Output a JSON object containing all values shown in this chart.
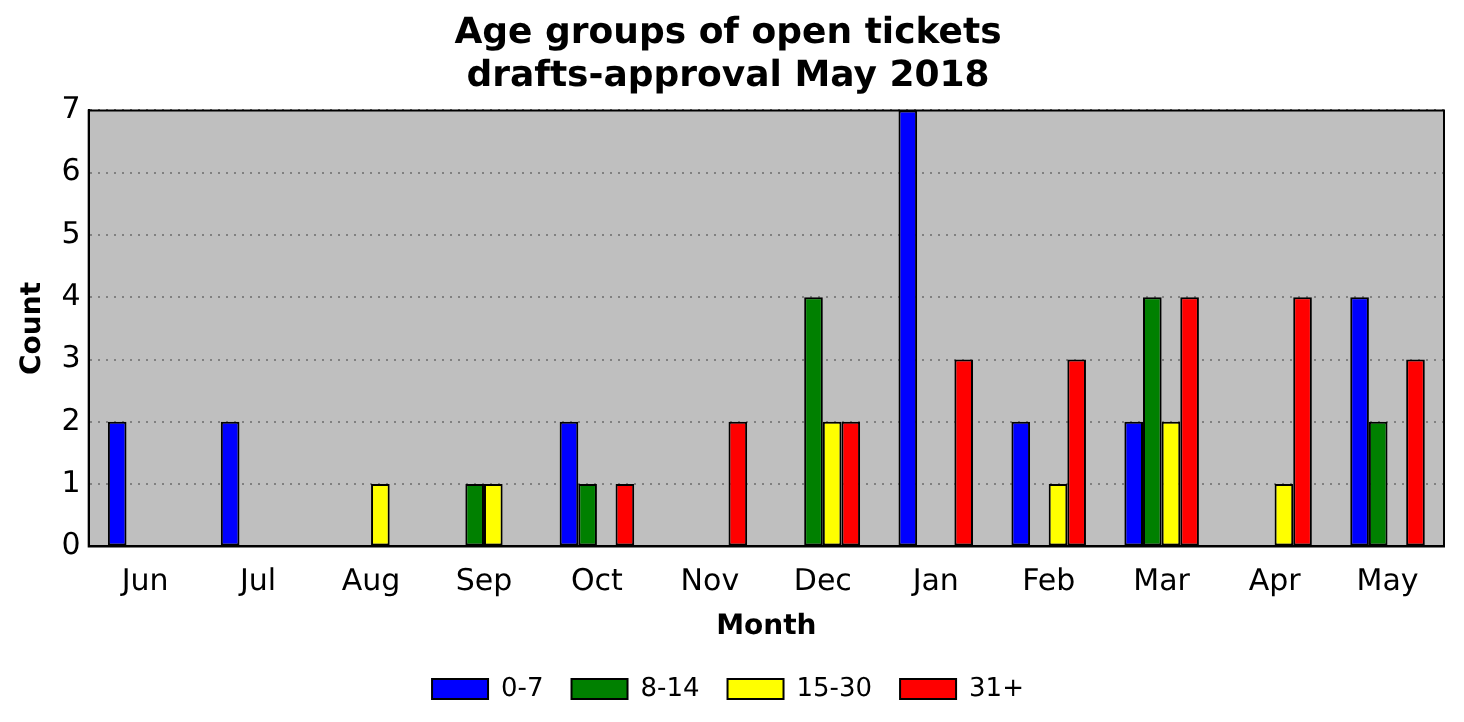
{
  "chart_data": {
    "type": "bar",
    "title": "Age groups of open tickets\ndrafts-approval May 2018",
    "xlabel": "Month",
    "ylabel": "Count",
    "categories": [
      "Jun",
      "Jul",
      "Aug",
      "Sep",
      "Oct",
      "Nov",
      "Dec",
      "Jan",
      "Feb",
      "Mar",
      "Apr",
      "May"
    ],
    "series": [
      {
        "name": "0-7",
        "color": "#0000ff",
        "values": [
          2,
          2,
          0,
          0,
          2,
          0,
          0,
          7,
          2,
          2,
          0,
          4
        ]
      },
      {
        "name": "8-14",
        "color": "#008000",
        "values": [
          0,
          0,
          0,
          1,
          1,
          0,
          4,
          0,
          0,
          4,
          0,
          2
        ]
      },
      {
        "name": "15-30",
        "color": "#ffff00",
        "values": [
          0,
          0,
          1,
          1,
          0,
          0,
          2,
          0,
          1,
          2,
          1,
          0
        ]
      },
      {
        "name": "31+",
        "color": "#ff0000",
        "values": [
          0,
          0,
          0,
          0,
          1,
          2,
          2,
          3,
          3,
          4,
          4,
          3
        ]
      }
    ],
    "ylim": [
      0,
      7
    ],
    "yticks": [
      0,
      1,
      2,
      3,
      4,
      5,
      6,
      7
    ],
    "grid": "y",
    "legend": "bottom"
  }
}
